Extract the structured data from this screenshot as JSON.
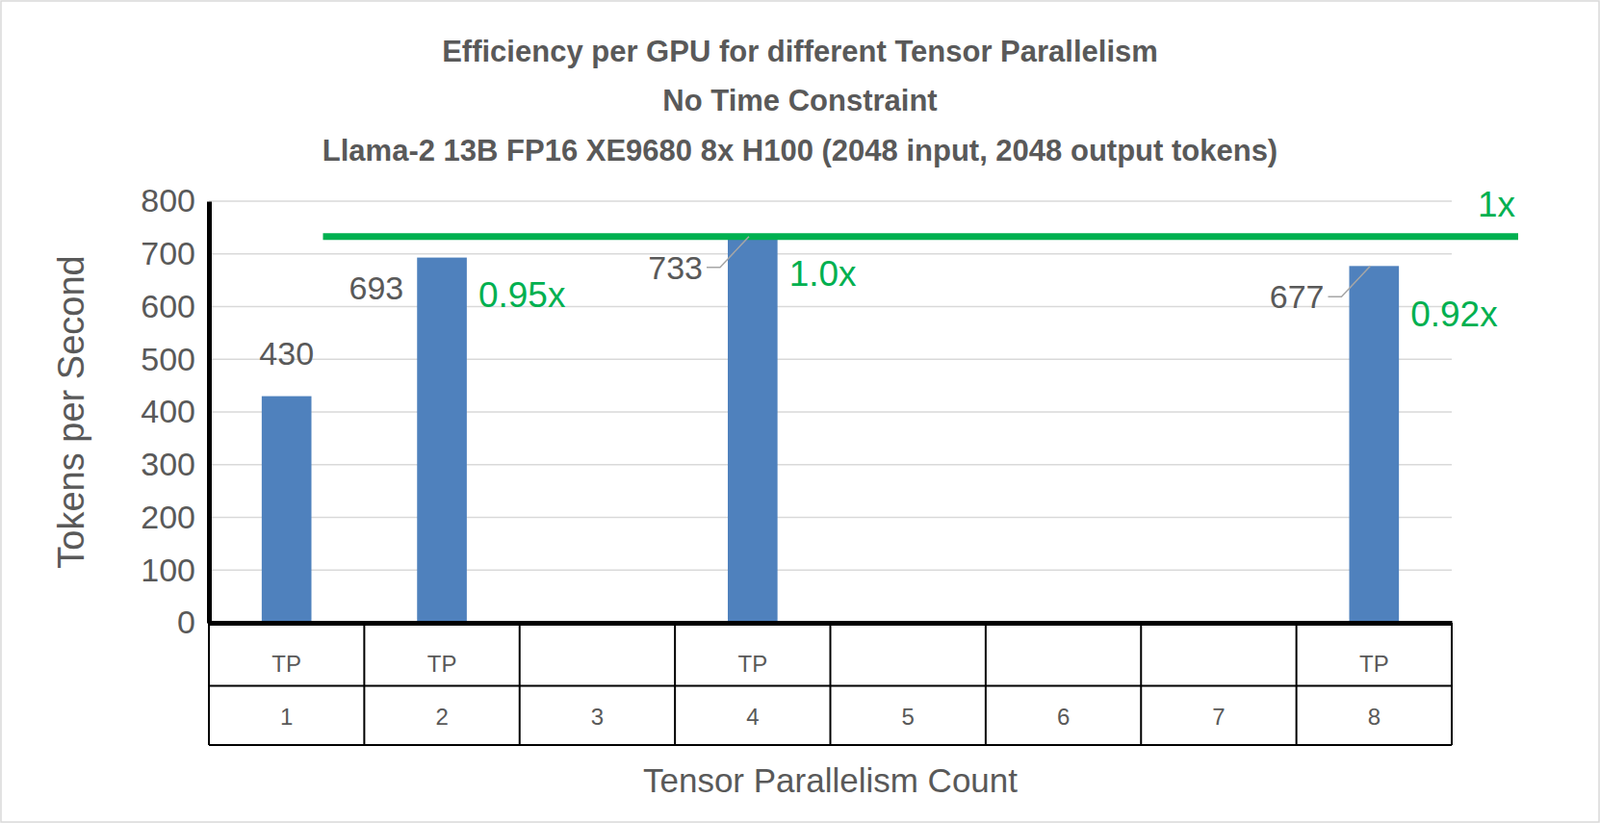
{
  "chart_data": {
    "type": "bar",
    "title": [
      "Efficiency per GPU for different Tensor Parallelism",
      "No Time Constraint",
      "Llama-2 13B FP16 XE9680 8x H100 (2048 input, 2048 output tokens)"
    ],
    "x_label": "Tensor Parallelism Count",
    "y_label": "Tokens per Second",
    "categories": [
      "1",
      "2",
      "3",
      "4",
      "5",
      "6",
      "7",
      "8"
    ],
    "group_labels": [
      "TP",
      "TP",
      null,
      "TP",
      null,
      null,
      null,
      "TP"
    ],
    "values": [
      430,
      693,
      null,
      733,
      null,
      null,
      null,
      677
    ],
    "color": "#4f81bd",
    "annotations": [
      null,
      "0.95x",
      null,
      "1.0x",
      null,
      null,
      null,
      "0.92x"
    ],
    "reference_line": {
      "value": 733,
      "label": "1x",
      "color": "#00b050"
    },
    "ylim": [
      0,
      800
    ],
    "yticks": [
      0,
      100,
      200,
      300,
      400,
      500,
      600,
      700,
      800
    ],
    "grid": true,
    "data_labels": true
  }
}
